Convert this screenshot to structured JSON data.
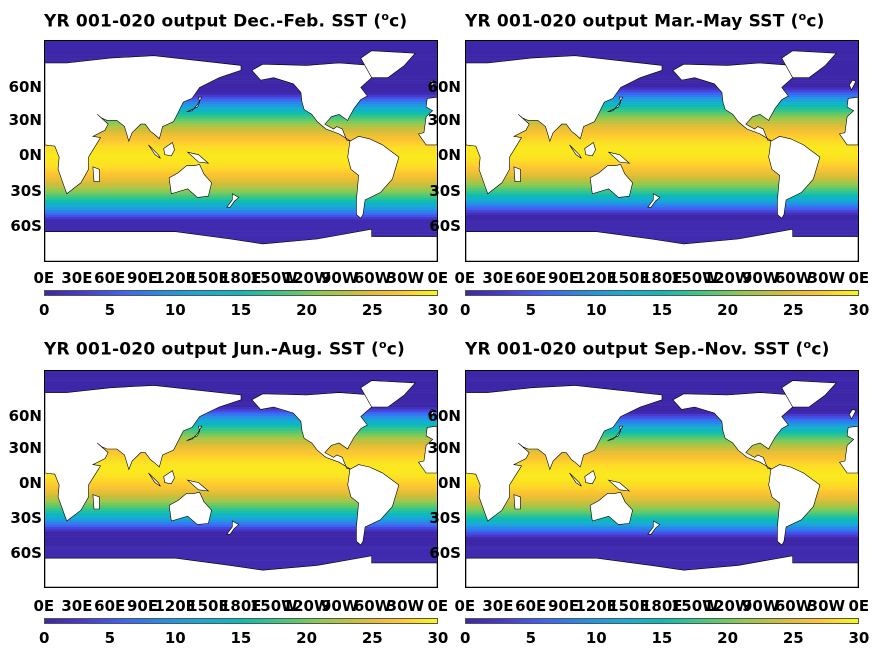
{
  "chart_data": [
    {
      "type": "heatmap",
      "title_prefix": "YR 001-020 output ",
      "season": "Dec.-Feb.",
      "title_suffix": " SST (",
      "unit_sup": "o",
      "unit_end": "c)",
      "lat_ticks": [
        "60N",
        "30N",
        "0N",
        "30S",
        "60S"
      ],
      "lon_ticks": [
        "0E",
        "30E",
        "60E",
        "90E",
        "120E",
        "150E",
        "180E",
        "150W",
        "120W",
        "90W",
        "60W",
        "30W",
        "0E"
      ],
      "colorbar": {
        "ticks": [
          "0",
          "5",
          "10",
          "15",
          "20",
          "25",
          "30"
        ],
        "range": [
          0,
          30
        ],
        "colormap": "parula"
      },
      "equatorial_max_lat": -5
    },
    {
      "type": "heatmap",
      "title_prefix": "YR 001-020 output ",
      "season": "Mar.-May",
      "title_suffix": " SST (",
      "unit_sup": "o",
      "unit_end": "c)",
      "lat_ticks": [
        "60N",
        "30N",
        "0N",
        "30S",
        "60S"
      ],
      "lon_ticks": [
        "0E",
        "30E",
        "60E",
        "90E",
        "120E",
        "150E",
        "180E",
        "150W",
        "120W",
        "90W",
        "60W",
        "30W",
        "0E"
      ],
      "colorbar": {
        "ticks": [
          "0",
          "5",
          "10",
          "15",
          "20",
          "25",
          "30"
        ],
        "range": [
          0,
          30
        ],
        "colormap": "parula"
      },
      "equatorial_max_lat": 0
    },
    {
      "type": "heatmap",
      "title_prefix": "YR 001-020 output ",
      "season": "Jun.-Aug.",
      "title_suffix": " SST (",
      "unit_sup": "o",
      "unit_end": "c)",
      "lat_ticks": [
        "60N",
        "30N",
        "0N",
        "30S",
        "60S"
      ],
      "lon_ticks": [
        "0E",
        "30E",
        "60E",
        "90E",
        "120E",
        "150E",
        "180E",
        "150W",
        "120W",
        "90W",
        "60W",
        "30W",
        "0E"
      ],
      "colorbar": {
        "ticks": [
          "0",
          "5",
          "10",
          "15",
          "20",
          "25",
          "30"
        ],
        "range": [
          0,
          30
        ],
        "colormap": "parula"
      },
      "equatorial_max_lat": 8
    },
    {
      "type": "heatmap",
      "title_prefix": "YR 001-020 output ",
      "season": "Sep.-Nov.",
      "title_suffix": " SST (",
      "unit_sup": "o",
      "unit_end": "c)",
      "lat_ticks": [
        "60N",
        "30N",
        "0N",
        "30S",
        "60S"
      ],
      "lon_ticks": [
        "0E",
        "30E",
        "60E",
        "90E",
        "120E",
        "150E",
        "180E",
        "150W",
        "120W",
        "90W",
        "60W",
        "30W",
        "0E"
      ],
      "colorbar": {
        "ticks": [
          "0",
          "5",
          "10",
          "15",
          "20",
          "25",
          "30"
        ],
        "range": [
          0,
          30
        ],
        "colormap": "parula"
      },
      "equatorial_max_lat": 3
    }
  ]
}
